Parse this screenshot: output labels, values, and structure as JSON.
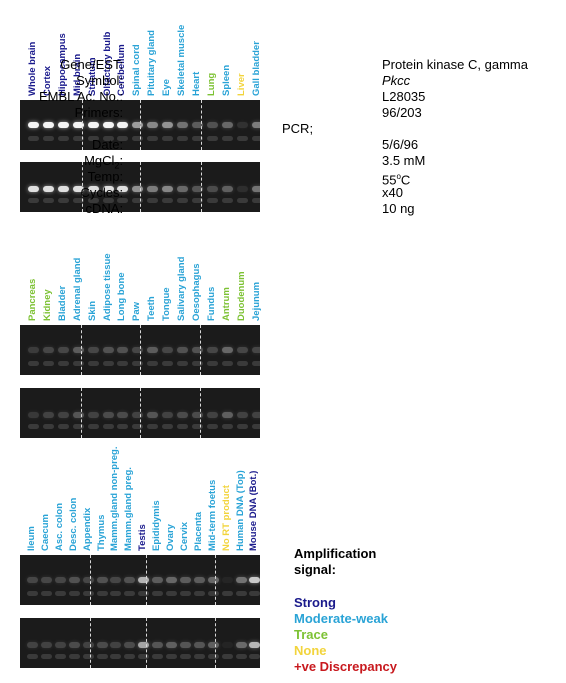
{
  "panels": [
    {
      "lanes": [
        {
          "label": "Whole brain",
          "color": "#1a1a8c"
        },
        {
          "label": "Cortex",
          "color": "#1a1a8c"
        },
        {
          "label": "Hippocampus",
          "color": "#1a1a8c"
        },
        {
          "label": "Mid brain",
          "color": "#1a1a8c"
        },
        {
          "label": "Striatum",
          "color": "#1a1a8c"
        },
        {
          "label": "Olfactory bulb",
          "color": "#1a1a8c"
        },
        {
          "label": "Cerebellum",
          "color": "#1a1a8c"
        },
        {
          "label": "Spinal cord",
          "color": "#29a3d6"
        },
        {
          "label": "Pituitary gland",
          "color": "#29a3d6"
        },
        {
          "label": "Eye",
          "color": "#29a3d6"
        },
        {
          "label": "Skeletal muscle",
          "color": "#29a3d6"
        },
        {
          "label": "Heart",
          "color": "#29a3d6"
        },
        {
          "label": "Lung",
          "color": "#7dc234"
        },
        {
          "label": "Spleen",
          "color": "#29a3d6"
        },
        {
          "label": "Liver",
          "color": "#f2d43c"
        },
        {
          "label": "Gall bladder",
          "color": "#29a3d6"
        }
      ]
    },
    {
      "lanes": [
        {
          "label": "Pancreas",
          "color": "#7dc234"
        },
        {
          "label": "Kidney",
          "color": "#7dc234"
        },
        {
          "label": "Bladder",
          "color": "#29a3d6"
        },
        {
          "label": "Adrenal gland",
          "color": "#29a3d6"
        },
        {
          "label": "Skin",
          "color": "#29a3d6"
        },
        {
          "label": "Adipose tissue",
          "color": "#29a3d6"
        },
        {
          "label": "Long bone",
          "color": "#29a3d6"
        },
        {
          "label": "Paw",
          "color": "#29a3d6"
        },
        {
          "label": "Teeth",
          "color": "#29a3d6"
        },
        {
          "label": "Tongue",
          "color": "#29a3d6"
        },
        {
          "label": "Salivary gland",
          "color": "#29a3d6"
        },
        {
          "label": "Oesophagus",
          "color": "#29a3d6"
        },
        {
          "label": "Fundus",
          "color": "#29a3d6"
        },
        {
          "label": "Antrum",
          "color": "#7dc234"
        },
        {
          "label": "Duodenum",
          "color": "#7dc234"
        },
        {
          "label": "Jejunum",
          "color": "#29a3d6"
        }
      ]
    },
    {
      "lanes": [
        {
          "label": "Ileum",
          "color": "#29a3d6"
        },
        {
          "label": "Caecum",
          "color": "#29a3d6"
        },
        {
          "label": "Asc. colon",
          "color": "#29a3d6"
        },
        {
          "label": "Desc. colon",
          "color": "#29a3d6"
        },
        {
          "label": "Appendix",
          "color": "#29a3d6"
        },
        {
          "label": "Thymus",
          "color": "#29a3d6"
        },
        {
          "label": "Mamm.gland non-preg.",
          "color": "#29a3d6"
        },
        {
          "label": "Mamm.gland preg.",
          "color": "#29a3d6"
        },
        {
          "label": "Testis",
          "color": "#1a1a8c"
        },
        {
          "label": "Epididymis",
          "color": "#29a3d6"
        },
        {
          "label": "Ovary",
          "color": "#29a3d6"
        },
        {
          "label": "Cervix",
          "color": "#29a3d6"
        },
        {
          "label": "Placenta",
          "color": "#29a3d6"
        },
        {
          "label": "Mid-term foetus",
          "color": "#29a3d6"
        },
        {
          "label": "No RT product",
          "color": "#f2d43c"
        },
        {
          "label": "Human DNA (Top)",
          "color": "#29a3d6"
        },
        {
          "label": "Mouse DNA (Bot.)",
          "color": "#1a1a8c"
        }
      ]
    }
  ],
  "info": {
    "gene_key": "Gene/EST:",
    "gene_value": "Protein kinase C, gamma",
    "symbol_key": "Symbol:",
    "symbol_value": "Pkcc",
    "embl_key": "EMBL Ac. No.:",
    "embl_value": "L28035",
    "primers_key": "Primers:",
    "primers_value": "96/203",
    "pcr_label": "PCR;",
    "date_key": "Date:",
    "date_value": "5/6/96",
    "mgcl_key": "MgCl",
    "mgcl_sub": "2",
    "mgcl_colon": ":",
    "mgcl_value": "3.5 mM",
    "temp_key": "Temp:",
    "temp_value_num": "55",
    "temp_value_deg": "o",
    "temp_value_unit": "C",
    "cycles_key": "Cycles:",
    "cycles_value": "x40",
    "cdna_key": "cDNA:",
    "cdna_value": "10 ng"
  },
  "legend": {
    "title_line1": "Amplification",
    "title_line2": "signal:",
    "items": [
      {
        "label": "Strong",
        "color": "#1a1a8c"
      },
      {
        "label": "Moderate-weak",
        "color": "#29a3d6"
      },
      {
        "label": "Trace",
        "color": "#7dc234"
      },
      {
        "label": "None",
        "color": "#f2d43c"
      },
      {
        "label": "+ve Discrepancy",
        "color": "#c8191e"
      }
    ]
  }
}
